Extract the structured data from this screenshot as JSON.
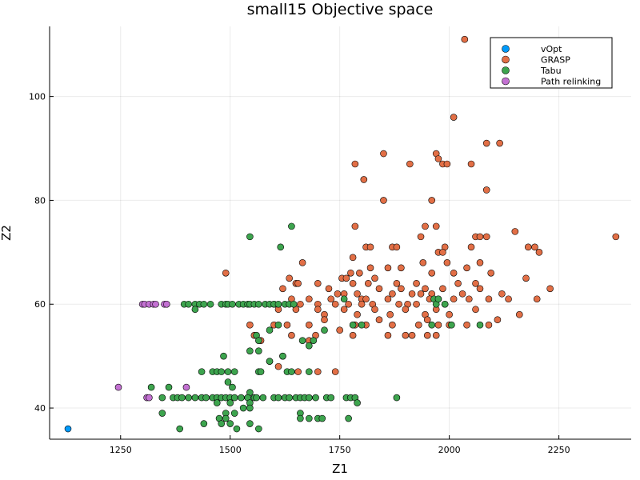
{
  "chart_data": {
    "type": "scatter",
    "title": "small15 Objective space",
    "xlabel": "Z1",
    "ylabel": "Z2",
    "xlim": [
      1088,
      2415
    ],
    "ylim": [
      34.0,
      113.5
    ],
    "xticks": [
      1250,
      1500,
      1750,
      2000,
      2250
    ],
    "yticks": [
      40,
      60,
      80,
      100
    ],
    "grid": true,
    "legend": "top-right",
    "series": [
      {
        "name": "vOpt",
        "color": "#009AFA",
        "points": [
          [
            1130,
            36
          ]
        ]
      },
      {
        "name": "GRASP",
        "color": "#E26F46",
        "points": [
          [
            2035,
            111
          ],
          [
            2010,
            96
          ],
          [
            2085,
            91
          ],
          [
            2115,
            91
          ],
          [
            1850,
            89
          ],
          [
            1970,
            89
          ],
          [
            1975,
            88
          ],
          [
            1785,
            87
          ],
          [
            1910,
            87
          ],
          [
            1985,
            87
          ],
          [
            1995,
            87
          ],
          [
            2050,
            87
          ],
          [
            1805,
            84
          ],
          [
            2085,
            82
          ],
          [
            1850,
            80
          ],
          [
            1960,
            80
          ],
          [
            2380,
            73
          ],
          [
            1785,
            75
          ],
          [
            1945,
            75
          ],
          [
            1970,
            75
          ],
          [
            2150,
            74
          ],
          [
            2060,
            73
          ],
          [
            2070,
            73
          ],
          [
            2085,
            73
          ],
          [
            1810,
            71
          ],
          [
            1820,
            71
          ],
          [
            1870,
            71
          ],
          [
            1880,
            71
          ],
          [
            1990,
            71
          ],
          [
            1975,
            70
          ],
          [
            1985,
            70
          ],
          [
            2050,
            71
          ],
          [
            2180,
            71
          ],
          [
            2195,
            71
          ],
          [
            2205,
            70
          ],
          [
            1935,
            73
          ],
          [
            1780,
            69
          ],
          [
            1940,
            68
          ],
          [
            1995,
            68
          ],
          [
            1665,
            68
          ],
          [
            1820,
            67
          ],
          [
            1860,
            67
          ],
          [
            1890,
            67
          ],
          [
            2040,
            67
          ],
          [
            2070,
            68
          ],
          [
            1490,
            66
          ],
          [
            1775,
            66
          ],
          [
            1795,
            66
          ],
          [
            1830,
            65
          ],
          [
            1960,
            66
          ],
          [
            2010,
            66
          ],
          [
            2095,
            66
          ],
          [
            1635,
            65
          ],
          [
            1650,
            64
          ],
          [
            1655,
            64
          ],
          [
            1755,
            65
          ],
          [
            1765,
            65
          ],
          [
            1780,
            64
          ],
          [
            1815,
            64
          ],
          [
            1840,
            63
          ],
          [
            1880,
            64
          ],
          [
            1890,
            63
          ],
          [
            1925,
            64
          ],
          [
            1945,
            63
          ],
          [
            1985,
            63
          ],
          [
            2020,
            64
          ],
          [
            2060,
            64
          ],
          [
            2175,
            65
          ],
          [
            1620,
            63
          ],
          [
            1700,
            64
          ],
          [
            1725,
            63
          ],
          [
            1745,
            62
          ],
          [
            1760,
            62
          ],
          [
            1790,
            62
          ],
          [
            1800,
            61
          ],
          [
            1810,
            61
          ],
          [
            1870,
            62
          ],
          [
            1915,
            62
          ],
          [
            1935,
            62
          ],
          [
            1960,
            62
          ],
          [
            1975,
            61
          ],
          [
            2030,
            62
          ],
          [
            2070,
            63
          ],
          [
            2120,
            62
          ],
          [
            2230,
            63
          ],
          [
            1600,
            60
          ],
          [
            1640,
            61
          ],
          [
            1660,
            60
          ],
          [
            1680,
            61
          ],
          [
            1700,
            60
          ],
          [
            1730,
            61
          ],
          [
            1740,
            60
          ],
          [
            1770,
            60
          ],
          [
            1800,
            60
          ],
          [
            1825,
            60
          ],
          [
            1860,
            61
          ],
          [
            1885,
            60
          ],
          [
            1905,
            60
          ],
          [
            1925,
            60
          ],
          [
            1955,
            61
          ],
          [
            1990,
            60
          ],
          [
            2010,
            61
          ],
          [
            2045,
            61
          ],
          [
            2090,
            61
          ],
          [
            2135,
            61
          ],
          [
            2200,
            61
          ],
          [
            1610,
            59
          ],
          [
            1650,
            59
          ],
          [
            1700,
            59
          ],
          [
            1715,
            58
          ],
          [
            1760,
            59
          ],
          [
            1790,
            58
          ],
          [
            1830,
            59
          ],
          [
            1865,
            58
          ],
          [
            1900,
            59
          ],
          [
            1945,
            58
          ],
          [
            1970,
            59
          ],
          [
            2000,
            58
          ],
          [
            2060,
            59
          ],
          [
            2110,
            57
          ],
          [
            2160,
            58
          ],
          [
            1545,
            56
          ],
          [
            1600,
            56
          ],
          [
            1630,
            56
          ],
          [
            1680,
            56
          ],
          [
            1715,
            57
          ],
          [
            1785,
            56
          ],
          [
            1810,
            56
          ],
          [
            1840,
            57
          ],
          [
            1870,
            56
          ],
          [
            1930,
            56
          ],
          [
            1950,
            57
          ],
          [
            1975,
            56
          ],
          [
            2000,
            56
          ],
          [
            2040,
            56
          ],
          [
            2090,
            56
          ],
          [
            1555,
            54
          ],
          [
            1640,
            54
          ],
          [
            1695,
            54
          ],
          [
            1750,
            55
          ],
          [
            1780,
            54
          ],
          [
            1860,
            54
          ],
          [
            1900,
            54
          ],
          [
            1915,
            54
          ],
          [
            1950,
            54
          ],
          [
            1970,
            54
          ],
          [
            1680,
            53
          ],
          [
            1620,
            50
          ],
          [
            1610,
            48
          ],
          [
            1700,
            47
          ],
          [
            1740,
            47
          ],
          [
            1655,
            47
          ],
          [
            1590,
            49
          ],
          [
            1570,
            53
          ]
        ]
      },
      {
        "name": "Tabu",
        "color": "#3DA44E",
        "points": [
          [
            1640,
            75
          ],
          [
            1545,
            73
          ],
          [
            1615,
            71
          ],
          [
            1355,
            60
          ],
          [
            1395,
            60
          ],
          [
            1405,
            60
          ],
          [
            1420,
            60
          ],
          [
            1430,
            60
          ],
          [
            1440,
            60
          ],
          [
            1455,
            60
          ],
          [
            1480,
            60
          ],
          [
            1490,
            60
          ],
          [
            1495,
            60
          ],
          [
            1505,
            60
          ],
          [
            1520,
            60
          ],
          [
            1530,
            60
          ],
          [
            1540,
            60
          ],
          [
            1545,
            60
          ],
          [
            1555,
            60
          ],
          [
            1565,
            60
          ],
          [
            1580,
            60
          ],
          [
            1590,
            60
          ],
          [
            1600,
            60
          ],
          [
            1610,
            60
          ],
          [
            1625,
            60
          ],
          [
            1635,
            60
          ],
          [
            1645,
            60
          ],
          [
            1420,
            59
          ],
          [
            1760,
            61
          ],
          [
            1965,
            61
          ],
          [
            1970,
            60
          ],
          [
            1975,
            61
          ],
          [
            1990,
            60
          ],
          [
            1780,
            56
          ],
          [
            1800,
            56
          ],
          [
            1960,
            56
          ],
          [
            2005,
            56
          ],
          [
            2070,
            56
          ],
          [
            1590,
            55
          ],
          [
            1715,
            55
          ],
          [
            1610,
            56
          ],
          [
            1560,
            54
          ],
          [
            1565,
            53
          ],
          [
            1665,
            53
          ],
          [
            1690,
            53
          ],
          [
            1680,
            52
          ],
          [
            1545,
            51
          ],
          [
            1565,
            51
          ],
          [
            1485,
            50
          ],
          [
            1620,
            50
          ],
          [
            1590,
            49
          ],
          [
            1460,
            47
          ],
          [
            1470,
            47
          ],
          [
            1480,
            47
          ],
          [
            1495,
            47
          ],
          [
            1510,
            47
          ],
          [
            1435,
            47
          ],
          [
            1565,
            47
          ],
          [
            1570,
            47
          ],
          [
            1630,
            47
          ],
          [
            1640,
            47
          ],
          [
            1680,
            47
          ],
          [
            1495,
            45
          ],
          [
            1505,
            44
          ],
          [
            1320,
            44
          ],
          [
            1360,
            44
          ],
          [
            1545,
            43
          ],
          [
            1345,
            42
          ],
          [
            1370,
            42
          ],
          [
            1380,
            42
          ],
          [
            1390,
            42
          ],
          [
            1405,
            42
          ],
          [
            1420,
            42
          ],
          [
            1435,
            42
          ],
          [
            1445,
            42
          ],
          [
            1460,
            42
          ],
          [
            1470,
            42
          ],
          [
            1480,
            42
          ],
          [
            1490,
            42
          ],
          [
            1500,
            42
          ],
          [
            1510,
            42
          ],
          [
            1525,
            42
          ],
          [
            1540,
            42
          ],
          [
            1555,
            42
          ],
          [
            1560,
            42
          ],
          [
            1575,
            42
          ],
          [
            1600,
            42
          ],
          [
            1610,
            42
          ],
          [
            1625,
            42
          ],
          [
            1635,
            42
          ],
          [
            1650,
            42
          ],
          [
            1660,
            42
          ],
          [
            1670,
            42
          ],
          [
            1680,
            42
          ],
          [
            1695,
            42
          ],
          [
            1720,
            42
          ],
          [
            1730,
            42
          ],
          [
            1765,
            42
          ],
          [
            1775,
            42
          ],
          [
            1785,
            42
          ],
          [
            1880,
            42
          ],
          [
            1470,
            41
          ],
          [
            1500,
            41
          ],
          [
            1545,
            41
          ],
          [
            1530,
            40
          ],
          [
            1790,
            41
          ],
          [
            1545,
            40
          ],
          [
            1490,
            39
          ],
          [
            1345,
            39
          ],
          [
            1510,
            39
          ],
          [
            1660,
            39
          ],
          [
            1490,
            38
          ],
          [
            1475,
            38
          ],
          [
            1660,
            38
          ],
          [
            1680,
            38
          ],
          [
            1700,
            38
          ],
          [
            1710,
            38
          ],
          [
            1770,
            38
          ],
          [
            1500,
            37
          ],
          [
            1480,
            37
          ],
          [
            1440,
            37
          ],
          [
            1545,
            37
          ],
          [
            1385,
            36
          ],
          [
            1515,
            36
          ],
          [
            1565,
            36
          ]
        ]
      },
      {
        "name": "Path relinking",
        "color": "#C371D2",
        "points": [
          [
            1300,
            60
          ],
          [
            1305,
            60
          ],
          [
            1315,
            60
          ],
          [
            1325,
            60
          ],
          [
            1330,
            60
          ],
          [
            1350,
            60
          ],
          [
            1355,
            60
          ],
          [
            1245,
            44
          ],
          [
            1310,
            42
          ],
          [
            1315,
            42
          ],
          [
            1400,
            44
          ]
        ]
      }
    ]
  }
}
